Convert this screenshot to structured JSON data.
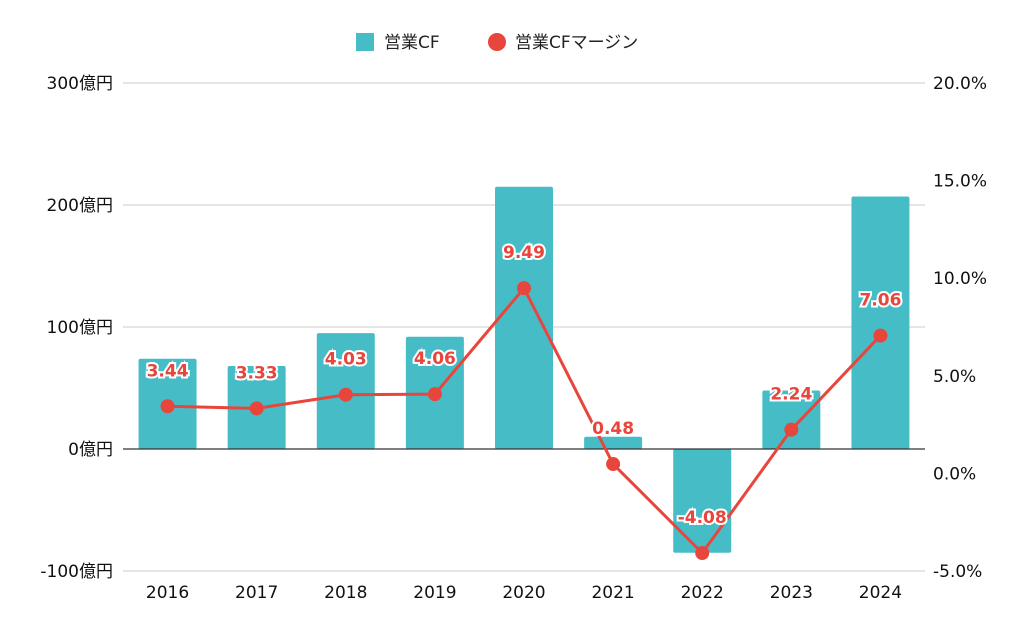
{
  "chart_data": {
    "type": "bar",
    "categories": [
      "2016",
      "2017",
      "2018",
      "2019",
      "2020",
      "2021",
      "2022",
      "2023",
      "2024"
    ],
    "series": [
      {
        "name": "営業CF",
        "type": "bar",
        "axis": "left",
        "color": "#46bdc6",
        "values": [
          74,
          68,
          95,
          92,
          215,
          10,
          -85,
          48,
          207
        ]
      },
      {
        "name": "営業CFマージン",
        "type": "line",
        "axis": "right",
        "color": "#e8453c",
        "values": [
          3.44,
          3.33,
          4.03,
          4.06,
          9.49,
          0.48,
          -4.08,
          2.24,
          7.06
        ],
        "labels": [
          "3.44",
          "3.33",
          "4.03",
          "4.06",
          "9.49",
          "0.48",
          "-4.08",
          "2.24",
          "7.06"
        ]
      }
    ],
    "y_left": {
      "range": [
        -100,
        300
      ],
      "ticks": [
        -100,
        0,
        100,
        200,
        300
      ],
      "tick_labels": [
        "-100億円",
        "0億円",
        "100億円",
        "200億円",
        "300億円"
      ]
    },
    "y_right": {
      "range": [
        -5,
        20
      ],
      "ticks": [
        -5,
        0,
        5,
        10,
        15,
        20
      ],
      "tick_labels": [
        "-5.0%",
        "0.0%",
        "5.0%",
        "10.0%",
        "15.0%",
        "20.0%"
      ]
    },
    "grid": true,
    "legend": "top-center"
  }
}
